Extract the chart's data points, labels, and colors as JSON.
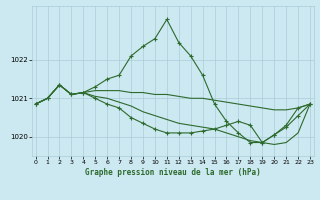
{
  "bg_color": "#cce8f0",
  "grid_color": "#aaccd8",
  "line_color": "#2d6a2d",
  "xlabel": "Graphe pression niveau de la mer (hPa)",
  "ylim": [
    1019.5,
    1023.4
  ],
  "yticks": [
    1020,
    1021,
    1022
  ],
  "xticks": [
    0,
    1,
    2,
    3,
    4,
    5,
    6,
    7,
    8,
    9,
    10,
    11,
    12,
    13,
    14,
    15,
    16,
    17,
    18,
    19,
    20,
    21,
    22,
    23
  ],
  "series": [
    {
      "y": [
        1020.85,
        1021.0,
        1021.35,
        1021.1,
        1021.15,
        1021.3,
        1021.5,
        1021.6,
        1022.1,
        1022.35,
        1022.55,
        1023.05,
        1022.45,
        1022.1,
        1021.6,
        1020.85,
        1020.4,
        1020.1,
        1019.85,
        1019.85,
        1020.05,
        1020.3,
        1020.75,
        1020.85
      ],
      "marker": true
    },
    {
      "y": [
        1020.85,
        1021.0,
        1021.35,
        1021.1,
        1021.15,
        1021.2,
        1021.2,
        1021.2,
        1021.15,
        1021.15,
        1021.1,
        1021.1,
        1021.05,
        1021.0,
        1021.0,
        1020.95,
        1020.9,
        1020.85,
        1020.8,
        1020.75,
        1020.7,
        1020.7,
        1020.75,
        1020.85
      ],
      "marker": false
    },
    {
      "y": [
        1020.85,
        1021.0,
        1021.35,
        1021.1,
        1021.15,
        1021.05,
        1021.0,
        1020.9,
        1020.8,
        1020.65,
        1020.55,
        1020.45,
        1020.35,
        1020.3,
        1020.25,
        1020.2,
        1020.1,
        1020.0,
        1019.9,
        1019.85,
        1019.8,
        1019.85,
        1020.1,
        1020.85
      ],
      "marker": false
    },
    {
      "y": [
        1020.85,
        1021.0,
        1021.35,
        1021.1,
        1021.15,
        1021.0,
        1020.85,
        1020.75,
        1020.5,
        1020.35,
        1020.2,
        1020.1,
        1020.1,
        1020.1,
        1020.15,
        1020.2,
        1020.3,
        1020.4,
        1020.3,
        1019.85,
        1020.05,
        1020.25,
        1020.55,
        1020.85
      ],
      "marker": true
    }
  ]
}
